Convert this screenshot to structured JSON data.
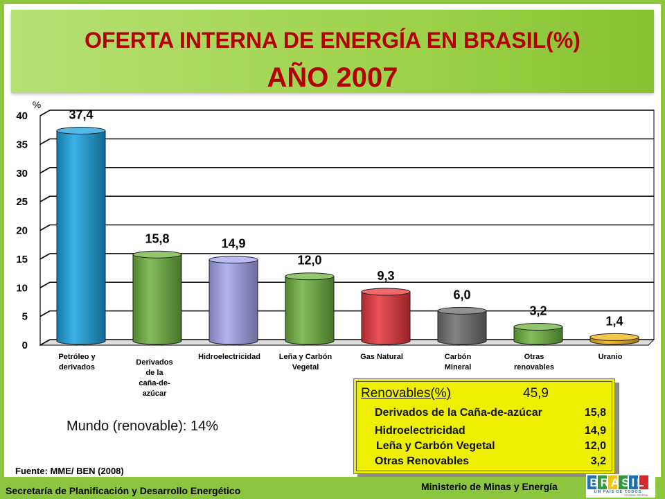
{
  "title": {
    "line1": "OFERTA INTERNA DE ENERGÍA EN BRASIL(%)",
    "line2": "AÑO 2007"
  },
  "chart_data": {
    "type": "bar",
    "ylabel": "%",
    "ylim": [
      0,
      40
    ],
    "yticks": [
      "0",
      "5",
      "10",
      "15",
      "20",
      "25",
      "30",
      "35",
      "40"
    ],
    "categories": [
      [
        "Petróleo y",
        "derivados"
      ],
      [
        "Derivados",
        "de la",
        "caña-de-",
        "azúcar"
      ],
      [
        "Hidroelectricidad"
      ],
      [
        "Leña y Carbón",
        "Vegetal"
      ],
      [
        "Gas Natural"
      ],
      [
        "Carbón",
        "Mineral"
      ],
      [
        "Otras",
        "renovables"
      ],
      [
        "Uranio"
      ]
    ],
    "values": [
      37.4,
      15.8,
      14.9,
      12.0,
      9.3,
      6.0,
      3.2,
      1.4
    ],
    "value_labels": [
      "37,4",
      "15,8",
      "14,9",
      "12,0",
      "9,3",
      "6,0",
      "3,2",
      "1,4"
    ],
    "colors": [
      "#1aa3e0",
      "#6db33f",
      "#a6a6f0",
      "#6db33f",
      "#e8353a",
      "#6e6e6e",
      "#6db33f",
      "#f0b416"
    ],
    "grid": true
  },
  "world_note": "Mundo (renovable): 14%",
  "legend": {
    "header_label": "Renovables(%)",
    "header_value": "45,9",
    "rows": [
      {
        "label": "Derivados de la Caña-de-azúcar",
        "value": "15,8"
      },
      {
        "label": "Hidroelectricidad",
        "value": "14,9"
      },
      {
        "label": "Leña y Carbón Vegetal",
        "value": "12,0"
      },
      {
        "label": "Otras Renovables",
        "value": "3,2"
      }
    ]
  },
  "source": "Fuente: MME/ BEN (2008)",
  "footer": {
    "left": "Secretaría de Planificación y Desarrollo Energético",
    "right": "Ministerio de Minas y Energía"
  },
  "logo": {
    "text": "BRASIL",
    "tagline": "UM PAÍS DE TODOS",
    "subtitle": "GOVERNO FEDERAL"
  }
}
